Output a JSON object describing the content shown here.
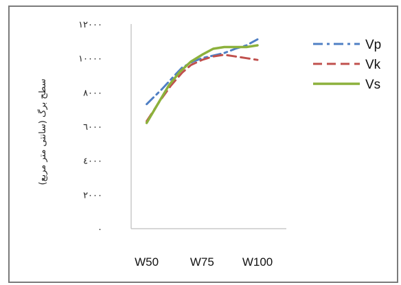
{
  "chart_data": {
    "type": "line",
    "categories": [
      "W50",
      "W75",
      "W100"
    ],
    "x_numeric": [
      50,
      75,
      100
    ],
    "xlim": [
      43,
      113
    ],
    "ylim": [
      0,
      12000
    ],
    "yticks": [
      0,
      2000,
      4000,
      6000,
      8000,
      10000,
      12000
    ],
    "ytick_labels": [
      "٠",
      "٢٠٠٠",
      "٤٠٠٠",
      "٦٠٠٠",
      "٨٠٠٠",
      "١٠٠٠٠",
      "١٢٠٠٠"
    ],
    "ylabel": "سطح برگ (سانتی متر مربع)",
    "xlabel": "",
    "title": "",
    "grid": false,
    "legend_position": "right",
    "series": [
      {
        "name": "Vp",
        "color": "#4f7fc4",
        "dash": "dash-dot",
        "points": [
          [
            50,
            7300
          ],
          [
            57,
            8200
          ],
          [
            62,
            8900
          ],
          [
            66,
            9450
          ],
          [
            71,
            9800
          ],
          [
            75,
            10000
          ],
          [
            80,
            10150
          ],
          [
            85,
            10300
          ],
          [
            90,
            10550
          ],
          [
            95,
            10750
          ],
          [
            100,
            11100
          ]
        ]
      },
      {
        "name": "Vk",
        "color": "#c0504d",
        "dash": "dash",
        "points": [
          [
            50,
            6300
          ],
          [
            56,
            7500
          ],
          [
            61,
            8400
          ],
          [
            66,
            9150
          ],
          [
            70,
            9600
          ],
          [
            75,
            9900
          ],
          [
            80,
            10100
          ],
          [
            85,
            10200
          ],
          [
            90,
            10100
          ],
          [
            95,
            10000
          ],
          [
            100,
            9900
          ]
        ]
      },
      {
        "name": "Vs",
        "color": "#8cb13c",
        "dash": "solid",
        "points": [
          [
            50,
            6200
          ],
          [
            55,
            7300
          ],
          [
            60,
            8400
          ],
          [
            65,
            9200
          ],
          [
            70,
            9800
          ],
          [
            75,
            10200
          ],
          [
            80,
            10550
          ],
          [
            85,
            10650
          ],
          [
            90,
            10650
          ],
          [
            95,
            10650
          ],
          [
            100,
            10750
          ]
        ]
      }
    ]
  }
}
